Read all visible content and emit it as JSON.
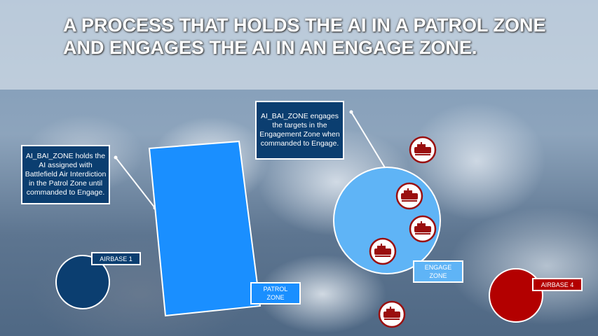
{
  "title": "A PROCESS THAT HOLDS THE AI IN A PATROL ZONE AND ENGAGES THE AI IN AN ENGAGE ZONE.",
  "callouts": {
    "patrol": "AI_BAI_ZONE holds the AI assigned with Battlefield Air Interdiction in the Patrol Zone until commanded to Engage.",
    "engage": "AI_BAI_ZONE engages the targets in the Engagement Zone when commanded to Engage."
  },
  "labels": {
    "airbase1": "AIRBASE 1",
    "airbase4": "AIRBASE 4",
    "patrol_zone": "PATROL ZONE",
    "engage_zone": "ENGAGE ZONE"
  },
  "colors": {
    "navy": "#0b3e70",
    "patrol": "#1a8fff",
    "engage": "#5fb4f6",
    "red": "#b30000"
  },
  "targets": {
    "icon": "tank-icon",
    "count": 5
  }
}
